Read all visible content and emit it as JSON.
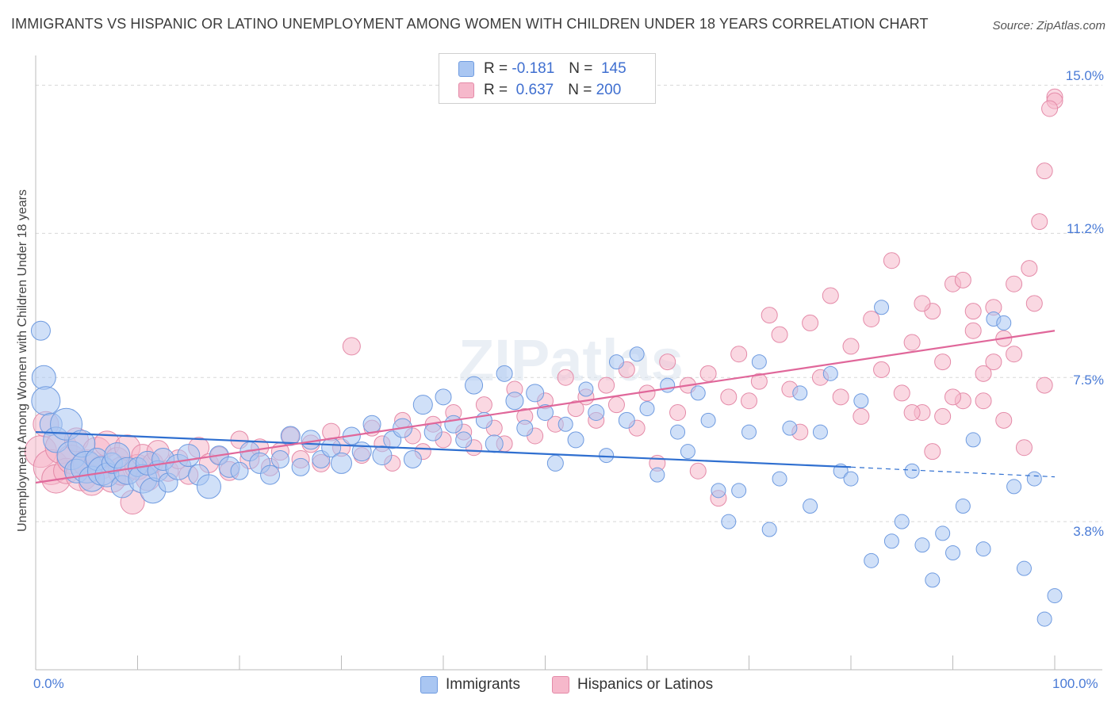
{
  "title": "IMMIGRANTS VS HISPANIC OR LATINO UNEMPLOYMENT AMONG WOMEN WITH CHILDREN UNDER 18 YEARS CORRELATION CHART",
  "source": "Source: ZipAtlas.com",
  "watermark": "ZIPatlas",
  "legend": {
    "r_label": "R =",
    "n_label": "N =",
    "immigrants": {
      "r": "-0.181",
      "n": "145"
    },
    "hispanics": {
      "r": "0.637",
      "n": "200"
    }
  },
  "colors": {
    "immigrants_fill": "#a9c6f2",
    "immigrants_stroke": "#6f9be0",
    "immigrants_line": "#2f6fd0",
    "hispanics_fill": "#f6b8cb",
    "hispanics_stroke": "#e48aa8",
    "hispanics_line": "#e0679a",
    "grid": "#d8d8d8",
    "tick_text": "#4a7bd6"
  },
  "chart_data": {
    "type": "scatter",
    "title": "IMMIGRANTS VS HISPANIC OR LATINO UNEMPLOYMENT AMONG WOMEN WITH CHILDREN UNDER 18 YEARS CORRELATION CHART",
    "xlabel": "",
    "ylabel": "Unemployment Among Women with Children Under 18 years",
    "xlim": [
      0,
      100
    ],
    "ylim": [
      0,
      15.6
    ],
    "x_tick_labels": [
      "0.0%",
      "100.0%"
    ],
    "y_ticks": [
      3.8,
      7.5,
      11.2,
      15.0
    ],
    "y_tick_labels": [
      "3.8%",
      "7.5%",
      "11.2%",
      "15.0%"
    ],
    "legend_position": "top-center",
    "series": [
      {
        "name": "Immigrants",
        "r": -0.181,
        "n": 145,
        "trend": {
          "x": [
            0,
            80,
            100
          ],
          "y": [
            6.1,
            5.2,
            4.95
          ],
          "solid_until": 80
        },
        "points": [
          [
            0.5,
            8.7,
            12
          ],
          [
            0.8,
            7.5,
            15
          ],
          [
            1,
            6.9,
            18
          ],
          [
            1.5,
            6.3,
            14
          ],
          [
            2,
            5.9,
            16
          ],
          [
            3,
            6.3,
            20
          ],
          [
            3.5,
            5.5,
            18
          ],
          [
            4,
            5.1,
            15
          ],
          [
            4.5,
            5.8,
            17
          ],
          [
            5,
            5.2,
            20
          ],
          [
            5.5,
            4.9,
            16
          ],
          [
            6,
            5.4,
            14
          ],
          [
            6.5,
            5.1,
            18
          ],
          [
            7,
            5.0,
            15
          ],
          [
            7.5,
            5.3,
            13
          ],
          [
            8,
            5.5,
            16
          ],
          [
            8.5,
            4.7,
            14
          ],
          [
            9,
            5.1,
            17
          ],
          [
            10,
            5.2,
            12
          ],
          [
            10.5,
            4.9,
            18
          ],
          [
            11,
            5.3,
            15
          ],
          [
            11.5,
            4.6,
            16
          ],
          [
            12,
            5.1,
            13
          ],
          [
            12.5,
            5.4,
            14
          ],
          [
            13,
            4.8,
            12
          ],
          [
            14,
            5.2,
            16
          ],
          [
            15,
            5.5,
            14
          ],
          [
            16,
            5.0,
            13
          ],
          [
            17,
            4.7,
            15
          ],
          [
            18,
            5.5,
            12
          ],
          [
            19,
            5.2,
            13
          ],
          [
            20,
            5.1,
            11
          ],
          [
            21,
            5.6,
            12
          ],
          [
            22,
            5.3,
            13
          ],
          [
            23,
            5.0,
            12
          ],
          [
            24,
            5.4,
            11
          ],
          [
            25,
            6.0,
            12
          ],
          [
            26,
            5.2,
            11
          ],
          [
            27,
            5.9,
            12
          ],
          [
            28,
            5.4,
            11
          ],
          [
            29,
            5.7,
            12
          ],
          [
            30,
            5.3,
            13
          ],
          [
            31,
            6.0,
            11
          ],
          [
            32,
            5.6,
            12
          ],
          [
            33,
            6.3,
            11
          ],
          [
            34,
            5.5,
            12
          ],
          [
            35,
            5.9,
            11
          ],
          [
            36,
            6.2,
            12
          ],
          [
            37,
            5.4,
            11
          ],
          [
            38,
            6.8,
            12
          ],
          [
            39,
            6.1,
            11
          ],
          [
            40,
            7.0,
            10
          ],
          [
            41,
            6.3,
            11
          ],
          [
            42,
            5.9,
            10
          ],
          [
            43,
            7.3,
            11
          ],
          [
            44,
            6.4,
            10
          ],
          [
            45,
            5.8,
            11
          ],
          [
            46,
            7.6,
            10
          ],
          [
            47,
            6.9,
            11
          ],
          [
            48,
            6.2,
            10
          ],
          [
            49,
            7.1,
            11
          ],
          [
            50,
            6.6,
            10
          ],
          [
            51,
            5.3,
            10
          ],
          [
            52,
            6.3,
            9
          ],
          [
            53,
            5.9,
            10
          ],
          [
            54,
            7.2,
            9
          ],
          [
            55,
            6.6,
            10
          ],
          [
            56,
            5.5,
            9
          ],
          [
            57,
            7.9,
            9
          ],
          [
            58,
            6.4,
            10
          ],
          [
            59,
            8.1,
            9
          ],
          [
            60,
            6.7,
            9
          ],
          [
            61,
            5.0,
            9
          ],
          [
            62,
            7.3,
            9
          ],
          [
            63,
            6.1,
            9
          ],
          [
            64,
            5.6,
            9
          ],
          [
            65,
            7.1,
            9
          ],
          [
            66,
            6.4,
            9
          ],
          [
            67,
            4.6,
            9
          ],
          [
            68,
            3.8,
            9
          ],
          [
            69,
            4.6,
            9
          ],
          [
            70,
            6.1,
            9
          ],
          [
            71,
            7.9,
            9
          ],
          [
            72,
            3.6,
            9
          ],
          [
            73,
            4.9,
            9
          ],
          [
            74,
            6.2,
            9
          ],
          [
            75,
            7.1,
            9
          ],
          [
            76,
            4.2,
            9
          ],
          [
            77,
            6.1,
            9
          ],
          [
            78,
            7.6,
            9
          ],
          [
            79,
            5.1,
            9
          ],
          [
            80,
            4.9,
            9
          ],
          [
            81,
            6.9,
            9
          ],
          [
            82,
            2.8,
            9
          ],
          [
            83,
            9.3,
            9
          ],
          [
            84,
            3.3,
            9
          ],
          [
            85,
            3.8,
            9
          ],
          [
            86,
            5.1,
            9
          ],
          [
            87,
            3.2,
            9
          ],
          [
            88,
            2.3,
            9
          ],
          [
            89,
            3.5,
            9
          ],
          [
            90,
            3.0,
            9
          ],
          [
            91,
            4.2,
            9
          ],
          [
            92,
            5.9,
            9
          ],
          [
            93,
            3.1,
            9
          ],
          [
            94,
            9.0,
            9
          ],
          [
            95,
            8.9,
            9
          ],
          [
            96,
            4.7,
            9
          ],
          [
            97,
            2.6,
            9
          ],
          [
            98,
            4.9,
            9
          ],
          [
            99,
            1.3,
            9
          ],
          [
            100,
            1.9,
            9
          ]
        ]
      },
      {
        "name": "Hispanics or Latinos",
        "r": 0.637,
        "n": 200,
        "trend": {
          "x": [
            0,
            100
          ],
          "y": [
            4.8,
            8.7
          ]
        },
        "points": [
          [
            0.5,
            5.6,
            20
          ],
          [
            1,
            6.3,
            16
          ],
          [
            1.5,
            5.2,
            22
          ],
          [
            2,
            4.9,
            18
          ],
          [
            2.5,
            5.7,
            20
          ],
          [
            3,
            5.1,
            16
          ],
          [
            3.5,
            5.4,
            18
          ],
          [
            4,
            5.9,
            15
          ],
          [
            4.5,
            5.0,
            20
          ],
          [
            5,
            5.3,
            17
          ],
          [
            5.5,
            4.8,
            16
          ],
          [
            6,
            5.6,
            18
          ],
          [
            6.5,
            5.2,
            15
          ],
          [
            7,
            5.8,
            16
          ],
          [
            7.5,
            4.9,
            17
          ],
          [
            8,
            5.4,
            15
          ],
          [
            8.5,
            5.1,
            18
          ],
          [
            9,
            5.7,
            16
          ],
          [
            9.5,
            4.3,
            15
          ],
          [
            10,
            5.2,
            16
          ],
          [
            10.5,
            5.5,
            14
          ],
          [
            11,
            4.9,
            15
          ],
          [
            11.5,
            5.3,
            13
          ],
          [
            12,
            5.6,
            14
          ],
          [
            13,
            5.1,
            13
          ],
          [
            14,
            5.4,
            12
          ],
          [
            15,
            5.0,
            12
          ],
          [
            16,
            5.7,
            13
          ],
          [
            17,
            5.3,
            12
          ],
          [
            18,
            5.5,
            11
          ],
          [
            19,
            5.1,
            12
          ],
          [
            20,
            5.9,
            11
          ],
          [
            21,
            5.4,
            12
          ],
          [
            22,
            5.7,
            11
          ],
          [
            23,
            5.2,
            11
          ],
          [
            24,
            5.6,
            11
          ],
          [
            25,
            6.0,
            11
          ],
          [
            26,
            5.4,
            11
          ],
          [
            27,
            5.8,
            11
          ],
          [
            28,
            5.3,
            11
          ],
          [
            29,
            6.1,
            11
          ],
          [
            30,
            5.7,
            11
          ],
          [
            31,
            8.3,
            11
          ],
          [
            32,
            5.5,
            10
          ],
          [
            33,
            6.2,
            10
          ],
          [
            34,
            5.8,
            10
          ],
          [
            35,
            5.3,
            10
          ],
          [
            36,
            6.4,
            10
          ],
          [
            37,
            6.0,
            10
          ],
          [
            38,
            5.6,
            10
          ],
          [
            39,
            6.3,
            10
          ],
          [
            40,
            5.9,
            10
          ],
          [
            41,
            6.6,
            10
          ],
          [
            42,
            6.1,
            10
          ],
          [
            43,
            5.7,
            10
          ],
          [
            44,
            6.8,
            10
          ],
          [
            45,
            6.2,
            10
          ],
          [
            46,
            5.8,
            10
          ],
          [
            47,
            7.2,
            10
          ],
          [
            48,
            6.5,
            10
          ],
          [
            49,
            6.0,
            10
          ],
          [
            50,
            6.9,
            10
          ],
          [
            51,
            6.3,
            10
          ],
          [
            52,
            7.5,
            10
          ],
          [
            53,
            6.7,
            10
          ],
          [
            54,
            7.0,
            10
          ],
          [
            55,
            6.4,
            10
          ],
          [
            56,
            7.3,
            10
          ],
          [
            57,
            6.8,
            10
          ],
          [
            58,
            7.7,
            10
          ],
          [
            59,
            6.2,
            10
          ],
          [
            60,
            7.1,
            10
          ],
          [
            61,
            5.3,
            10
          ],
          [
            62,
            7.9,
            10
          ],
          [
            63,
            6.6,
            10
          ],
          [
            64,
            7.3,
            10
          ],
          [
            65,
            5.1,
            10
          ],
          [
            66,
            7.6,
            10
          ],
          [
            67,
            4.4,
            10
          ],
          [
            68,
            7.0,
            10
          ],
          [
            69,
            8.1,
            10
          ],
          [
            70,
            6.9,
            10
          ],
          [
            71,
            7.4,
            10
          ],
          [
            72,
            9.1,
            10
          ],
          [
            73,
            8.6,
            10
          ],
          [
            74,
            7.2,
            10
          ],
          [
            75,
            6.1,
            10
          ],
          [
            76,
            8.9,
            10
          ],
          [
            77,
            7.5,
            10
          ],
          [
            78,
            9.6,
            10
          ],
          [
            79,
            7.0,
            10
          ],
          [
            80,
            8.3,
            10
          ],
          [
            81,
            6.5,
            10
          ],
          [
            82,
            9.0,
            10
          ],
          [
            83,
            7.7,
            10
          ],
          [
            84,
            10.5,
            10
          ],
          [
            85,
            7.1,
            10
          ],
          [
            86,
            8.4,
            10
          ],
          [
            87,
            6.6,
            10
          ],
          [
            88,
            9.2,
            10
          ],
          [
            89,
            7.9,
            10
          ],
          [
            90,
            9.9,
            10
          ],
          [
            91,
            6.9,
            10
          ],
          [
            92,
            8.7,
            10
          ],
          [
            93,
            7.6,
            10
          ],
          [
            94,
            9.3,
            10
          ],
          [
            95,
            6.4,
            10
          ],
          [
            96,
            8.1,
            10
          ],
          [
            97,
            5.7,
            10
          ],
          [
            98,
            9.4,
            10
          ],
          [
            99,
            7.3,
            10
          ],
          [
            100,
            14.7,
            10
          ],
          [
            100,
            14.6,
            10
          ],
          [
            99.5,
            14.4,
            10
          ],
          [
            99,
            12.8,
            10
          ],
          [
            98.5,
            11.5,
            10
          ],
          [
            97.5,
            10.3,
            10
          ],
          [
            96,
            9.9,
            10
          ],
          [
            95,
            8.5,
            10
          ],
          [
            94,
            7.9,
            10
          ],
          [
            93,
            6.9,
            10
          ],
          [
            92,
            9.2,
            10
          ],
          [
            91,
            10.0,
            10
          ],
          [
            90,
            7.0,
            10
          ],
          [
            89,
            6.5,
            10
          ],
          [
            88,
            5.6,
            10
          ],
          [
            87,
            9.4,
            10
          ],
          [
            86,
            6.6,
            10
          ]
        ]
      }
    ]
  }
}
